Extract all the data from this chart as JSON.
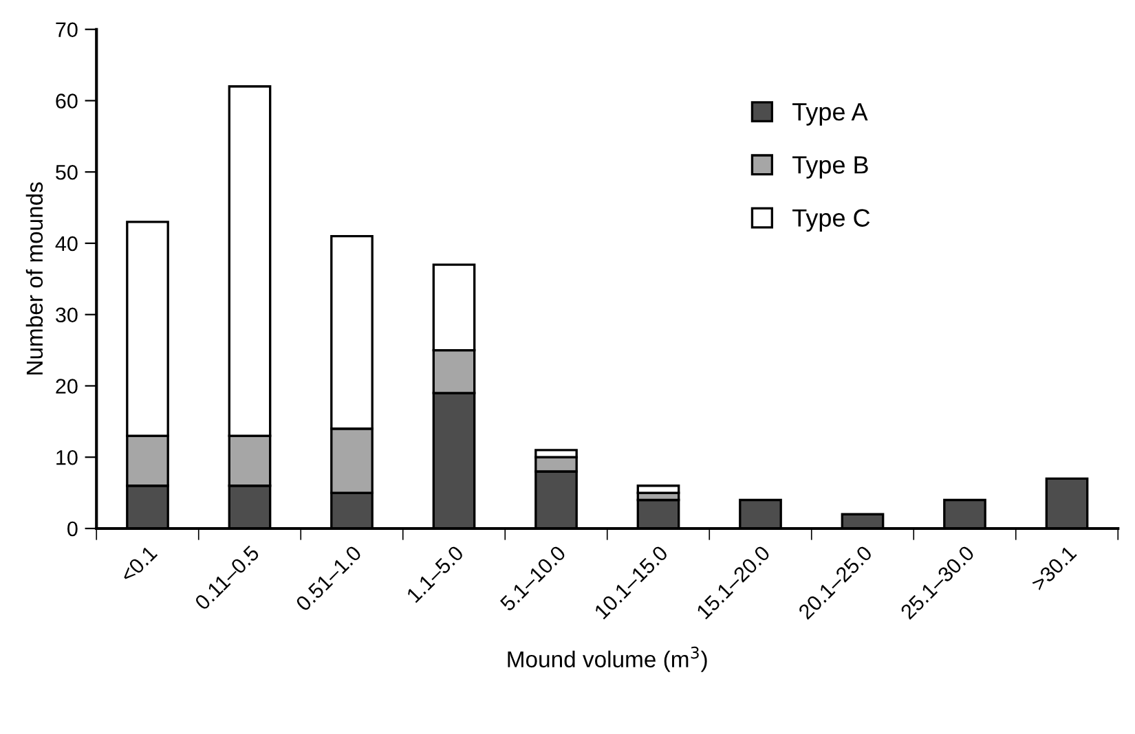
{
  "chart_data": {
    "type": "bar",
    "stacked": true,
    "xlabel": "Mound volume (m$^{3}$)",
    "ylabel": "Number of mounds",
    "categories": [
      "<0.1",
      "0.11–0.5",
      "0.51–1.0",
      "1.1–5.0",
      "5.1–10.0",
      "10.1–15.0",
      "15.1–20.0",
      "20.1–25.0",
      "25.1–30.0",
      ">30.1"
    ],
    "series": [
      {
        "name": "Type A",
        "color": "#4d4d4d",
        "values": [
          6,
          6,
          5,
          19,
          8,
          4,
          4,
          2,
          4,
          7
        ]
      },
      {
        "name": "Type B",
        "color": "#a6a6a6",
        "values": [
          7,
          7,
          9,
          6,
          2,
          1,
          null,
          null,
          null,
          null
        ]
      },
      {
        "name": "Type C",
        "color": "#ffffff",
        "values": [
          30,
          49,
          27,
          12,
          1,
          1,
          null,
          null,
          null,
          null
        ]
      }
    ],
    "ylim": [
      0,
      70
    ],
    "yticks": [
      0,
      10,
      20,
      30,
      40,
      50,
      60,
      70
    ],
    "legend": "right",
    "grid": false
  }
}
